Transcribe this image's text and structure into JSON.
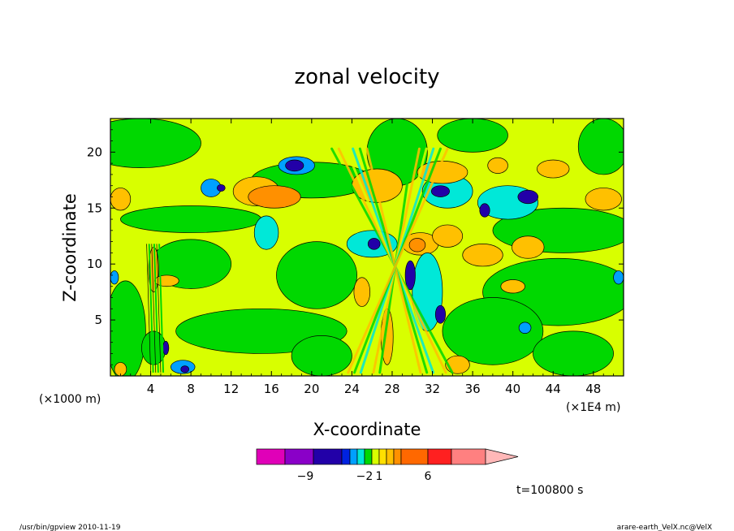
{
  "chart_data": {
    "type": "heatmap",
    "title": "zonal velocity",
    "xlabel": "X-coordinate",
    "ylabel": "Z-coordinate",
    "x_unit": "(×1E4 m)",
    "y_unit": "(×1000 m)",
    "x_ticks": [
      "4",
      "8",
      "12",
      "16",
      "20",
      "24",
      "28",
      "32",
      "36",
      "40",
      "44",
      "48"
    ],
    "y_ticks": [
      "5",
      "10",
      "15",
      "20"
    ],
    "xlim": [
      0,
      51
    ],
    "ylim": [
      0,
      23
    ],
    "colorbar": {
      "colors": [
        "#e000b8",
        "#8a00c8",
        "#2200a8",
        "#0022e0",
        "#00a0ff",
        "#00e8d8",
        "#00d800",
        "#d8ff00",
        "#ffe000",
        "#ffc000",
        "#ff9000",
        "#ff6800",
        "#ff2020",
        "#ff8080",
        "#ffb8b8"
      ],
      "labels": [
        {
          "text": "−9",
          "index": 2
        },
        {
          "text": "−2",
          "index": 6
        },
        {
          "text": "1",
          "index": 8
        },
        {
          "text": "6",
          "index": 12
        }
      ]
    },
    "colors": {
      "background": "#d8ff00",
      "green": "#00d800",
      "cyan": "#00e8d8",
      "blue": "#00a0ff",
      "dark_blue": "#2200a8",
      "orange": "#ffc000",
      "dark_orange": "#ff9000"
    },
    "blobs": [
      {
        "x": 20,
        "y": 17.5,
        "rx": 6,
        "ry": 1.6,
        "c": 1,
        "level": "green"
      },
      {
        "x": 18.5,
        "y": 18.8,
        "rx": 1.8,
        "ry": 0.8,
        "c": 1,
        "level": "blue"
      },
      {
        "x": 18.3,
        "y": 18.8,
        "rx": 0.9,
        "ry": 0.5,
        "c": 1,
        "level": "dark_blue"
      },
      {
        "x": 14.5,
        "y": 16.5,
        "rx": 2.3,
        "ry": 1.3,
        "c": 1,
        "level": "orange"
      },
      {
        "x": 16.3,
        "y": 16.0,
        "rx": 2.6,
        "ry": 1.0,
        "c": 1,
        "level": "dark_orange"
      },
      {
        "x": 15.5,
        "y": 12.8,
        "rx": 1.2,
        "ry": 1.5,
        "c": 1,
        "level": "cyan"
      },
      {
        "x": 10.0,
        "y": 16.8,
        "rx": 1.0,
        "ry": 0.8,
        "c": 1,
        "level": "blue"
      },
      {
        "x": 11.0,
        "y": 16.8,
        "rx": 0.4,
        "ry": 0.3,
        "c": 1,
        "level": "dark_blue"
      },
      {
        "x": 1.0,
        "y": 15.8,
        "rx": 1.0,
        "ry": 1.0,
        "c": 1,
        "level": "orange"
      },
      {
        "x": 33.5,
        "y": 16.5,
        "rx": 2.5,
        "ry": 1.5,
        "c": 1,
        "level": "cyan"
      },
      {
        "x": 32.8,
        "y": 16.5,
        "rx": 0.9,
        "ry": 0.5,
        "c": 1,
        "level": "dark_blue"
      },
      {
        "x": 39.5,
        "y": 15.5,
        "rx": 3.0,
        "ry": 1.5,
        "c": 1,
        "level": "cyan"
      },
      {
        "x": 41.5,
        "y": 16.0,
        "rx": 1.0,
        "ry": 0.6,
        "c": 1,
        "level": "dark_blue"
      },
      {
        "x": 37.2,
        "y": 14.8,
        "rx": 0.5,
        "ry": 0.6,
        "c": 1,
        "level": "dark_blue"
      },
      {
        "x": 38.5,
        "y": 18.8,
        "rx": 1.0,
        "ry": 0.7,
        "c": 1,
        "level": "orange"
      },
      {
        "x": 33.0,
        "y": 18.2,
        "rx": 2.5,
        "ry": 1.0,
        "c": 1,
        "level": "orange"
      },
      {
        "x": 44.0,
        "y": 18.5,
        "rx": 1.6,
        "ry": 0.8,
        "c": 1,
        "level": "orange"
      },
      {
        "x": 49.0,
        "y": 15.8,
        "rx": 1.8,
        "ry": 1.0,
        "c": 1,
        "level": "orange"
      },
      {
        "x": 30.8,
        "y": 11.8,
        "rx": 1.8,
        "ry": 1.0,
        "c": 1,
        "level": "orange"
      },
      {
        "x": 30.5,
        "y": 11.7,
        "rx": 0.8,
        "ry": 0.6,
        "c": 1,
        "level": "dark_orange"
      },
      {
        "x": 33.5,
        "y": 12.5,
        "rx": 1.5,
        "ry": 1.0,
        "c": 1,
        "level": "orange"
      },
      {
        "x": 41.5,
        "y": 11.5,
        "rx": 1.6,
        "ry": 1.0,
        "c": 1,
        "level": "orange"
      },
      {
        "x": 37.0,
        "y": 10.8,
        "rx": 2.0,
        "ry": 1.0,
        "c": 1,
        "level": "orange"
      },
      {
        "x": 26.0,
        "y": 11.8,
        "rx": 2.5,
        "ry": 1.2,
        "c": 1,
        "level": "cyan"
      },
      {
        "x": 26.2,
        "y": 11.8,
        "rx": 0.6,
        "ry": 0.5,
        "c": 1,
        "level": "dark_blue"
      },
      {
        "x": 31.5,
        "y": 7.5,
        "rx": 1.5,
        "ry": 3.5,
        "c": 1,
        "level": "cyan"
      },
      {
        "x": 32.8,
        "y": 5.5,
        "rx": 0.5,
        "ry": 0.8,
        "c": 1,
        "level": "dark_blue"
      },
      {
        "x": 29.8,
        "y": 9.0,
        "rx": 0.5,
        "ry": 1.3,
        "c": 1,
        "level": "dark_blue"
      },
      {
        "x": 4.3,
        "y": 9.5,
        "rx": 0.5,
        "ry": 2.0,
        "c": 1,
        "level": "orange"
      },
      {
        "x": 5.6,
        "y": 8.5,
        "rx": 1.2,
        "ry": 0.5,
        "c": 1,
        "level": "orange"
      },
      {
        "x": 4.3,
        "y": 2.5,
        "rx": 1.2,
        "ry": 1.5,
        "c": 1,
        "level": "green"
      },
      {
        "x": 5.5,
        "y": 2.5,
        "rx": 0.3,
        "ry": 0.6,
        "c": 1,
        "level": "dark_blue"
      },
      {
        "x": 7.2,
        "y": 0.8,
        "rx": 1.2,
        "ry": 0.6,
        "c": 1,
        "level": "blue"
      },
      {
        "x": 7.4,
        "y": 0.6,
        "rx": 0.4,
        "ry": 0.3,
        "c": 1,
        "level": "dark_blue"
      },
      {
        "x": 1.0,
        "y": 0.6,
        "rx": 0.6,
        "ry": 0.6,
        "c": 1,
        "level": "orange"
      },
      {
        "x": 26.5,
        "y": 17.0,
        "rx": 2.5,
        "ry": 1.5,
        "c": 1,
        "level": "orange"
      },
      {
        "x": 25.0,
        "y": 7.5,
        "rx": 0.8,
        "ry": 1.3,
        "c": 1,
        "level": "orange"
      },
      {
        "x": 27.5,
        "y": 3.5,
        "rx": 0.6,
        "ry": 2.5,
        "c": 1,
        "level": "orange"
      },
      {
        "x": 34.5,
        "y": 1.0,
        "rx": 1.2,
        "ry": 0.8,
        "c": 1,
        "level": "orange"
      },
      {
        "x": 40.0,
        "y": 8.0,
        "rx": 1.2,
        "ry": 0.6,
        "c": 1,
        "level": "orange"
      },
      {
        "x": 41.2,
        "y": 4.3,
        "rx": 0.6,
        "ry": 0.5,
        "c": 1,
        "level": "blue"
      },
      {
        "x": 50.5,
        "y": 8.8,
        "rx": 0.5,
        "ry": 0.6,
        "c": 1,
        "level": "blue"
      },
      {
        "x": 0.4,
        "y": 8.8,
        "rx": 0.4,
        "ry": 0.6,
        "c": 1,
        "level": "blue"
      }
    ],
    "green_regions": [
      {
        "x": 3.0,
        "y": 20.8,
        "rx": 6.0,
        "ry": 2.2
      },
      {
        "x": 8.0,
        "y": 14.0,
        "rx": 7.0,
        "ry": 1.2
      },
      {
        "x": 1.5,
        "y": 4.0,
        "rx": 2.0,
        "ry": 4.5
      },
      {
        "x": 8.0,
        "y": 10.0,
        "rx": 4.0,
        "ry": 2.2
      },
      {
        "x": 15.0,
        "y": 4.0,
        "rx": 8.5,
        "ry": 2.0
      },
      {
        "x": 20.5,
        "y": 9.0,
        "rx": 4.0,
        "ry": 3.0
      },
      {
        "x": 21.0,
        "y": 1.8,
        "rx": 3.0,
        "ry": 1.8
      },
      {
        "x": 45.0,
        "y": 13.0,
        "rx": 7.0,
        "ry": 2.0
      },
      {
        "x": 44.5,
        "y": 7.5,
        "rx": 7.5,
        "ry": 3.0
      },
      {
        "x": 38.0,
        "y": 4.0,
        "rx": 5.0,
        "ry": 3.0
      },
      {
        "x": 36.0,
        "y": 21.5,
        "rx": 3.5,
        "ry": 1.5
      },
      {
        "x": 28.5,
        "y": 20.0,
        "rx": 3.0,
        "ry": 3.0
      },
      {
        "x": 49.0,
        "y": 20.5,
        "rx": 2.5,
        "ry": 2.5
      },
      {
        "x": 46.0,
        "y": 2.0,
        "rx": 4.0,
        "ry": 2.0
      }
    ]
  },
  "timestamp_label": "t=100800 s",
  "footer": {
    "left": "/usr/bin/gpview  2010-11-19",
    "right": "arare-earth_VelX.nc@VelX"
  }
}
